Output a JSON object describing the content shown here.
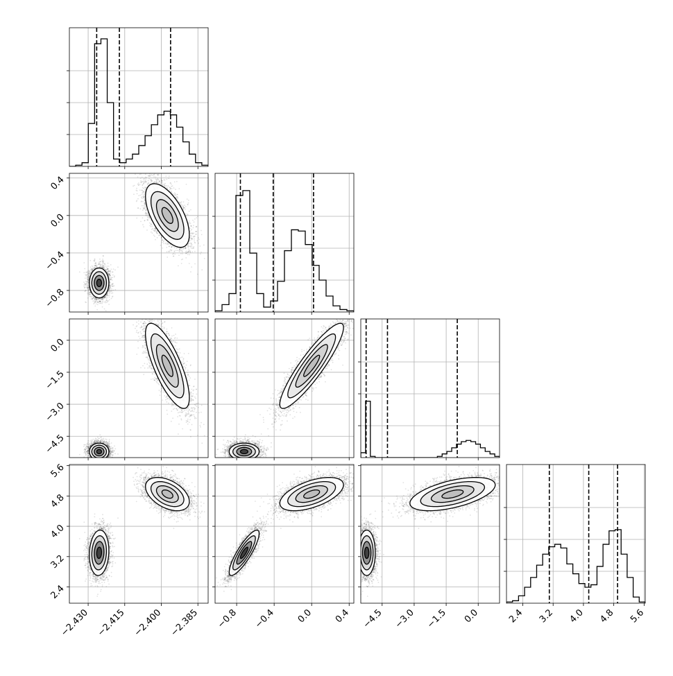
{
  "figure": {
    "title": "",
    "colors": {
      "line": "#000000",
      "grid": "#b0b0b0",
      "background": "#ffffff"
    },
    "grid": true
  },
  "chart_data": {
    "type": "corner",
    "n_params": 4,
    "params": [
      {
        "label": "",
        "range": [
          -2.4377,
          -2.3808
        ],
        "ticks": [
          -2.43,
          -2.415,
          -2.4,
          -2.385
        ],
        "tick_labels": [
          "−2.430",
          "−2.415",
          "−2.400",
          "−2.385"
        ],
        "quantiles": [
          -2.4265,
          -2.4172,
          -2.3962
        ]
      },
      {
        "label": "",
        "range": [
          -1.03,
          0.45
        ],
        "ticks": [
          -0.8,
          -0.4,
          0.0,
          0.4
        ],
        "tick_labels": [
          "−0.8",
          "−0.4",
          "0.0",
          "0.4"
        ],
        "quantiles": [
          -0.76,
          -0.41,
          0.02
        ]
      },
      {
        "label": "",
        "range": [
          -5.5,
          1.0
        ],
        "ticks": [
          -4.5,
          -3.0,
          -1.5,
          0.0
        ],
        "tick_labels": [
          "−4.5",
          "−3.0",
          "−1.5",
          "0.0"
        ],
        "quantiles": [
          -5.25,
          -4.25,
          -0.98
        ]
      },
      {
        "label": "",
        "range": [
          1.97,
          5.63
        ],
        "ticks": [
          2.4,
          3.2,
          4.0,
          4.8,
          5.6
        ],
        "tick_labels": [
          "2.4",
          "3.2",
          "4.0",
          "4.8",
          "5.6"
        ],
        "quantiles": [
          3.1,
          4.14,
          4.9
        ]
      }
    ],
    "histograms": [
      [
        0,
        0.01,
        0.03,
        0.35,
        1.0,
        1.04,
        0.52,
        0.06,
        0.03,
        0.06,
        0.1,
        0.17,
        0.25,
        0.34,
        0.42,
        0.45,
        0.42,
        0.32,
        0.2,
        0.1,
        0.03,
        0.01
      ],
      [
        0.01,
        0.06,
        0.15,
        0.95,
        0.99,
        0.48,
        0.15,
        0.04,
        0.09,
        0.25,
        0.5,
        0.67,
        0.66,
        0.55,
        0.38,
        0.26,
        0.13,
        0.05,
        0.02,
        0.01
      ],
      [
        0.04,
        0.46,
        0.01,
        0,
        0,
        0,
        0,
        0,
        0,
        0,
        0,
        0,
        0,
        0,
        0,
        0,
        0.01,
        0.03,
        0.05,
        0.08,
        0.11,
        0.13,
        0.14,
        0.13,
        0.11,
        0.08,
        0.05,
        0.03,
        0.01
      ],
      [
        0.01,
        0.02,
        0.06,
        0.13,
        0.21,
        0.31,
        0.4,
        0.46,
        0.48,
        0.45,
        0.32,
        0.24,
        0.16,
        0.13,
        0.15,
        0.3,
        0.48,
        0.59,
        0.6,
        0.4,
        0.21,
        0.05,
        0.01
      ]
    ],
    "modes": [
      {
        "center": [
          -2.4255,
          -0.72,
          -5.22,
          3.3
        ],
        "sd": [
          0.002,
          0.08,
          0.2,
          0.3
        ],
        "corr": [
          [
            1,
            0,
            0,
            0.1
          ],
          [
            0,
            1,
            0,
            0.85
          ],
          [
            0,
            0,
            1,
            0
          ],
          [
            0.1,
            0.85,
            0,
            1
          ]
        ]
      },
      {
        "center": [
          -2.3975,
          0.0,
          -1.2,
          4.85
        ],
        "sd": [
          0.0045,
          0.17,
          1.0,
          0.22
        ],
        "corr": [
          [
            1,
            -0.6,
            -0.75,
            -0.45
          ],
          [
            -0.6,
            1,
            0.9,
            0.55
          ],
          [
            -0.75,
            0.9,
            1,
            0.55
          ],
          [
            -0.45,
            0.55,
            0.55,
            1
          ]
        ]
      }
    ]
  }
}
